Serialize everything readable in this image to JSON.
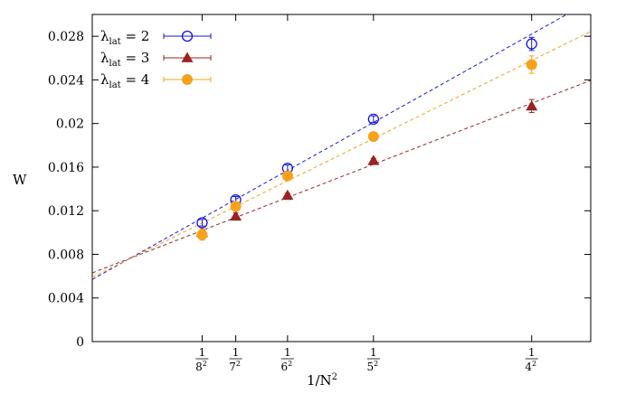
{
  "chart_data": {
    "type": "scatter",
    "xlabel_base": "1/N",
    "xlabel_exp": "2",
    "ylabel": "W",
    "xlim": [
      0.0,
      0.0709
    ],
    "ylim": [
      0,
      0.03
    ],
    "yticks": [
      "0",
      "0.004",
      "0.008",
      "0.012",
      "0.016",
      "0.02",
      "0.024",
      "0.028"
    ],
    "yticks_values": [
      0,
      0.004,
      0.008,
      0.012,
      0.016,
      0.02,
      0.024,
      0.028
    ],
    "xticks": [
      {
        "num": "1",
        "den_base": "8",
        "den_exp": "2",
        "value": 0.015625
      },
      {
        "num": "1",
        "den_base": "7",
        "den_exp": "2",
        "value": 0.020408
      },
      {
        "num": "1",
        "den_base": "6",
        "den_exp": "2",
        "value": 0.027778
      },
      {
        "num": "1",
        "den_base": "5",
        "den_exp": "2",
        "value": 0.04
      },
      {
        "num": "1",
        "den_base": "4",
        "den_exp": "2",
        "value": 0.0625
      }
    ],
    "legend_position": "top-left",
    "series": [
      {
        "legend_lambda": "λ",
        "legend_sub": "lat",
        "legend_eq": " = 2",
        "marker": "open-circle",
        "color": "#1515e0",
        "x": [
          0.015625,
          0.020408,
          0.027778,
          0.04,
          0.0625
        ],
        "y": [
          0.0109,
          0.013,
          0.0159,
          0.0204,
          0.0273
        ],
        "yerr": [
          0.0003,
          0.0003,
          0.0003,
          0.0003,
          0.0006
        ],
        "fit": {
          "slope": 0.36,
          "intercept": 0.0057
        }
      },
      {
        "legend_lambda": "λ",
        "legend_sub": "lat",
        "legend_eq": " = 3",
        "marker": "filled-triangle",
        "color": "#9b2323",
        "x": [
          0.015625,
          0.020408,
          0.027778,
          0.04,
          0.0625
        ],
        "y": [
          0.01,
          0.0115,
          0.0134,
          0.0166,
          0.0216
        ],
        "yerr": [
          0.0002,
          0.0003,
          0.0002,
          0.0002,
          0.0006
        ],
        "fit": {
          "slope": 0.249,
          "intercept": 0.0063
        }
      },
      {
        "legend_lambda": "λ",
        "legend_sub": "lat",
        "legend_eq": " = 4",
        "marker": "filled-circle",
        "color": "#f7a21b",
        "x": [
          0.015625,
          0.020408,
          0.027778,
          0.04,
          0.0625
        ],
        "y": [
          0.0098,
          0.0124,
          0.0152,
          0.0188,
          0.0254
        ],
        "yerr": [
          0.0005,
          0.0004,
          0.0003,
          0.0003,
          0.0008
        ],
        "fit": {
          "slope": 0.318,
          "intercept": 0.0059
        }
      }
    ]
  }
}
